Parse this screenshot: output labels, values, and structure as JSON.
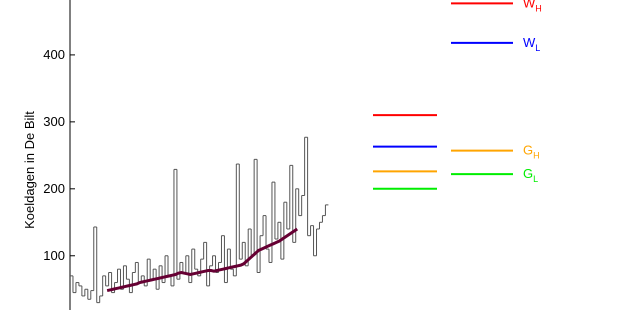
{
  "chart_data": {
    "type": "line",
    "ylabel": "Koeldagen in De Bilt",
    "ylim": [
      19,
      482
    ],
    "yticks": [
      100,
      200,
      300,
      400
    ],
    "series": [
      {
        "color": "#555555",
        "step": true,
        "values": [
          70,
          45,
          60,
          55,
          40,
          50,
          35,
          48,
          143,
          30,
          40,
          70,
          55,
          75,
          45,
          60,
          80,
          50,
          85,
          65,
          45,
          75,
          90,
          60,
          70,
          55,
          95,
          65,
          80,
          50,
          85,
          60,
          100,
          70,
          55,
          229,
          65,
          90,
          75,
          100,
          60,
          110,
          80,
          70,
          95,
          120,
          55,
          85,
          100,
          75,
          90,
          130,
          60,
          110,
          80,
          70,
          237,
          95,
          120,
          85,
          140,
          100,
          244,
          75,
          130,
          160,
          110,
          90,
          210,
          125,
          150,
          95,
          180,
          140,
          235,
          120,
          200,
          160,
          190,
          277,
          130,
          145,
          100,
          140,
          150,
          160,
          176
        ]
      },
      {
        "color": "#660033",
        "step": false,
        "values": [
          null,
          null,
          null,
          null,
          null,
          null,
          null,
          null,
          null,
          null,
          null,
          null,
          48,
          49,
          50,
          51,
          52,
          53,
          54,
          55,
          56,
          57,
          58,
          60,
          61,
          62,
          63,
          64,
          65,
          66,
          67,
          68,
          69,
          70,
          71,
          72,
          74,
          75,
          74,
          73,
          72,
          73,
          74,
          75,
          76,
          77,
          78,
          78,
          77,
          78,
          79,
          80,
          81,
          82,
          83,
          84,
          85,
          86,
          88,
          92,
          96,
          100,
          104,
          108,
          110,
          112,
          114,
          116,
          118,
          120,
          122,
          125,
          128,
          131,
          134,
          137,
          140,
          null,
          null,
          null,
          null,
          null,
          null,
          null,
          null,
          null,
          null
        ]
      }
    ],
    "scenarios": [
      {
        "name": "W",
        "sub": "H",
        "color": "#ff0000",
        "values": [
          310,
          477
        ]
      },
      {
        "name": "W",
        "sub": "L",
        "color": "#0000ff",
        "values": [
          263,
          418
        ]
      },
      {
        "name": "G",
        "sub": "H",
        "color": "#ffa500",
        "values": [
          226,
          257
        ]
      },
      {
        "name": "G",
        "sub": "L",
        "color": "#00ee00",
        "values": [
          200,
          222
        ]
      }
    ]
  }
}
